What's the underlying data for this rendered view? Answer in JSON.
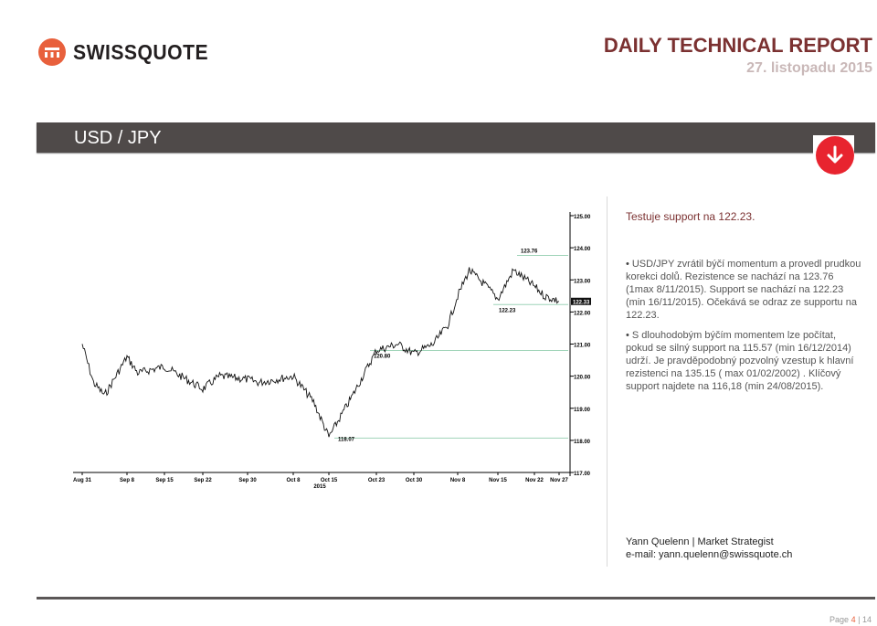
{
  "header": {
    "brand": "SWISSQUOTE",
    "report_title": "DAILY TECHNICAL REPORT",
    "report_date": "27. listopadu 2015"
  },
  "banner": {
    "pair": "USD / JPY"
  },
  "direction_icon": "arrow-down-icon",
  "colors": {
    "accent": "#7b3131",
    "brand_orange": "#e8603c",
    "down_red": "#e8242f",
    "banner_bg": "#4f4a49",
    "level_line": "#9fd3b8"
  },
  "analysis": {
    "headline": "Testuje support na 122.23.",
    "bullets": [
      "USD/JPY zvrátil býčí momentum a provedl prudkou korekci dolů. Rezistence se nachází na 123.76 (1max 8/11/2015). Support se nachází na 122.23 (min 16/11/2015). Očekává se odraz ze supportu na 122.23.",
      "S dlouhodobým býčím momentem lze počítat, pokud se silný support na 115.57 (min 16/12/2014) udrží. Je pravděpodobný pozvolný vzestup k hlavní rezistenci na 135.15 ( max 01/02/2002) . Klíčový support najdete na 116,18 (min 24/08/2015)."
    ]
  },
  "author": {
    "name_line": "Yann Quelenn | Market Strategist",
    "email_line": "e-mail: yann.quelenn@swissquote.ch"
  },
  "page": {
    "current": "4",
    "label": "Page",
    "separator": "|",
    "total": "14"
  },
  "chart_data": {
    "type": "line",
    "title": "",
    "xlabel": "",
    "ylabel": "",
    "ylim": [
      117.0,
      125.0
    ],
    "y_ticks": [
      "125.00",
      "124.00",
      "123.00",
      "122.00",
      "121.00",
      "120.00",
      "119.00",
      "118.00",
      "117.00"
    ],
    "x_ticks": [
      "Aug 31",
      "Sep 8",
      "Sep 15",
      "Sep 22",
      "Sep 30",
      "Oct 8",
      "Oct 15",
      "Oct 23",
      "Oct 30",
      "Nov 8",
      "Nov 15",
      "Nov 22",
      "Nov 27"
    ],
    "x_year_label": "2015",
    "current_price_label": "122.33",
    "levels": [
      {
        "value": 123.76,
        "label": "123.76"
      },
      {
        "value": 122.23,
        "label": "122.23"
      },
      {
        "value": 120.8,
        "label": "120.80"
      },
      {
        "value": 118.07,
        "label": "118.07"
      }
    ],
    "series": [
      {
        "x": [
          "Aug 31",
          "Sep 2",
          "Sep 4",
          "Sep 8",
          "Sep 10",
          "Sep 15",
          "Sep 18",
          "Sep 22",
          "Sep 25",
          "Sep 30",
          "Oct 2",
          "Oct 8",
          "Oct 12",
          "Oct 15",
          "Oct 19",
          "Oct 23",
          "Oct 27",
          "Oct 30",
          "Nov 3",
          "Nov 6",
          "Nov 8",
          "Nov 10",
          "Nov 13",
          "Nov 15",
          "Nov 18",
          "Nov 22",
          "Nov 24",
          "Nov 27"
        ],
        "values": [
          121.0,
          119.8,
          119.4,
          120.6,
          120.1,
          120.3,
          120.0,
          119.6,
          120.0,
          119.9,
          119.8,
          120.0,
          119.2,
          118.1,
          119.4,
          120.8,
          121.0,
          120.7,
          121.0,
          121.6,
          122.5,
          123.3,
          122.8,
          122.4,
          123.3,
          122.8,
          122.5,
          122.33
        ]
      }
    ]
  }
}
